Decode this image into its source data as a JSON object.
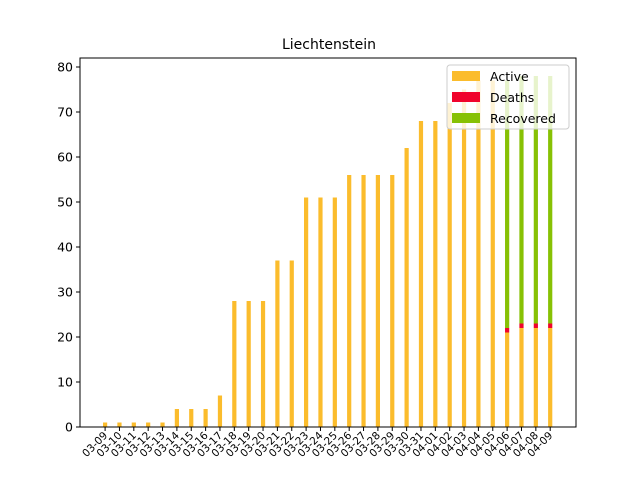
{
  "chart_data": {
    "type": "bar",
    "stacked": true,
    "title": "Liechtenstein",
    "xlabel": "",
    "ylabel": "",
    "ylim": [
      0,
      82
    ],
    "yticks": [
      0,
      10,
      20,
      30,
      40,
      50,
      60,
      70,
      80
    ],
    "grid": false,
    "legend_position": "top-right",
    "categories": [
      "03-09",
      "03-10",
      "03-11",
      "03-12",
      "03-13",
      "03-14",
      "03-15",
      "03-16",
      "03-17",
      "03-18",
      "03-19",
      "03-20",
      "03-21",
      "03-22",
      "03-23",
      "03-24",
      "03-25",
      "03-26",
      "03-27",
      "03-28",
      "03-29",
      "03-30",
      "03-31",
      "04-01",
      "04-02",
      "04-03",
      "04-04",
      "04-05",
      "04-06",
      "04-07",
      "04-08",
      "04-09"
    ],
    "series": [
      {
        "name": "Active",
        "color": "#fbbc2c",
        "values": [
          1,
          1,
          1,
          1,
          1,
          4,
          4,
          4,
          7,
          28,
          28,
          28,
          37,
          37,
          51,
          51,
          51,
          56,
          56,
          56,
          56,
          62,
          68,
          68,
          72,
          75,
          77,
          77,
          21,
          22,
          22,
          22
        ]
      },
      {
        "name": "Deaths",
        "color": "#f0042c",
        "values": [
          0,
          0,
          0,
          0,
          0,
          0,
          0,
          0,
          0,
          0,
          0,
          0,
          0,
          0,
          0,
          0,
          0,
          0,
          0,
          0,
          0,
          0,
          0,
          0,
          0,
          0,
          0,
          0,
          1,
          1,
          1,
          1
        ]
      },
      {
        "name": "Recovered",
        "color": "#87c104",
        "values": [
          0,
          0,
          0,
          0,
          0,
          0,
          0,
          0,
          0,
          0,
          0,
          0,
          0,
          0,
          0,
          0,
          0,
          0,
          0,
          0,
          0,
          0,
          0,
          0,
          0,
          0,
          0,
          0,
          55,
          55,
          55,
          55
        ]
      }
    ]
  }
}
